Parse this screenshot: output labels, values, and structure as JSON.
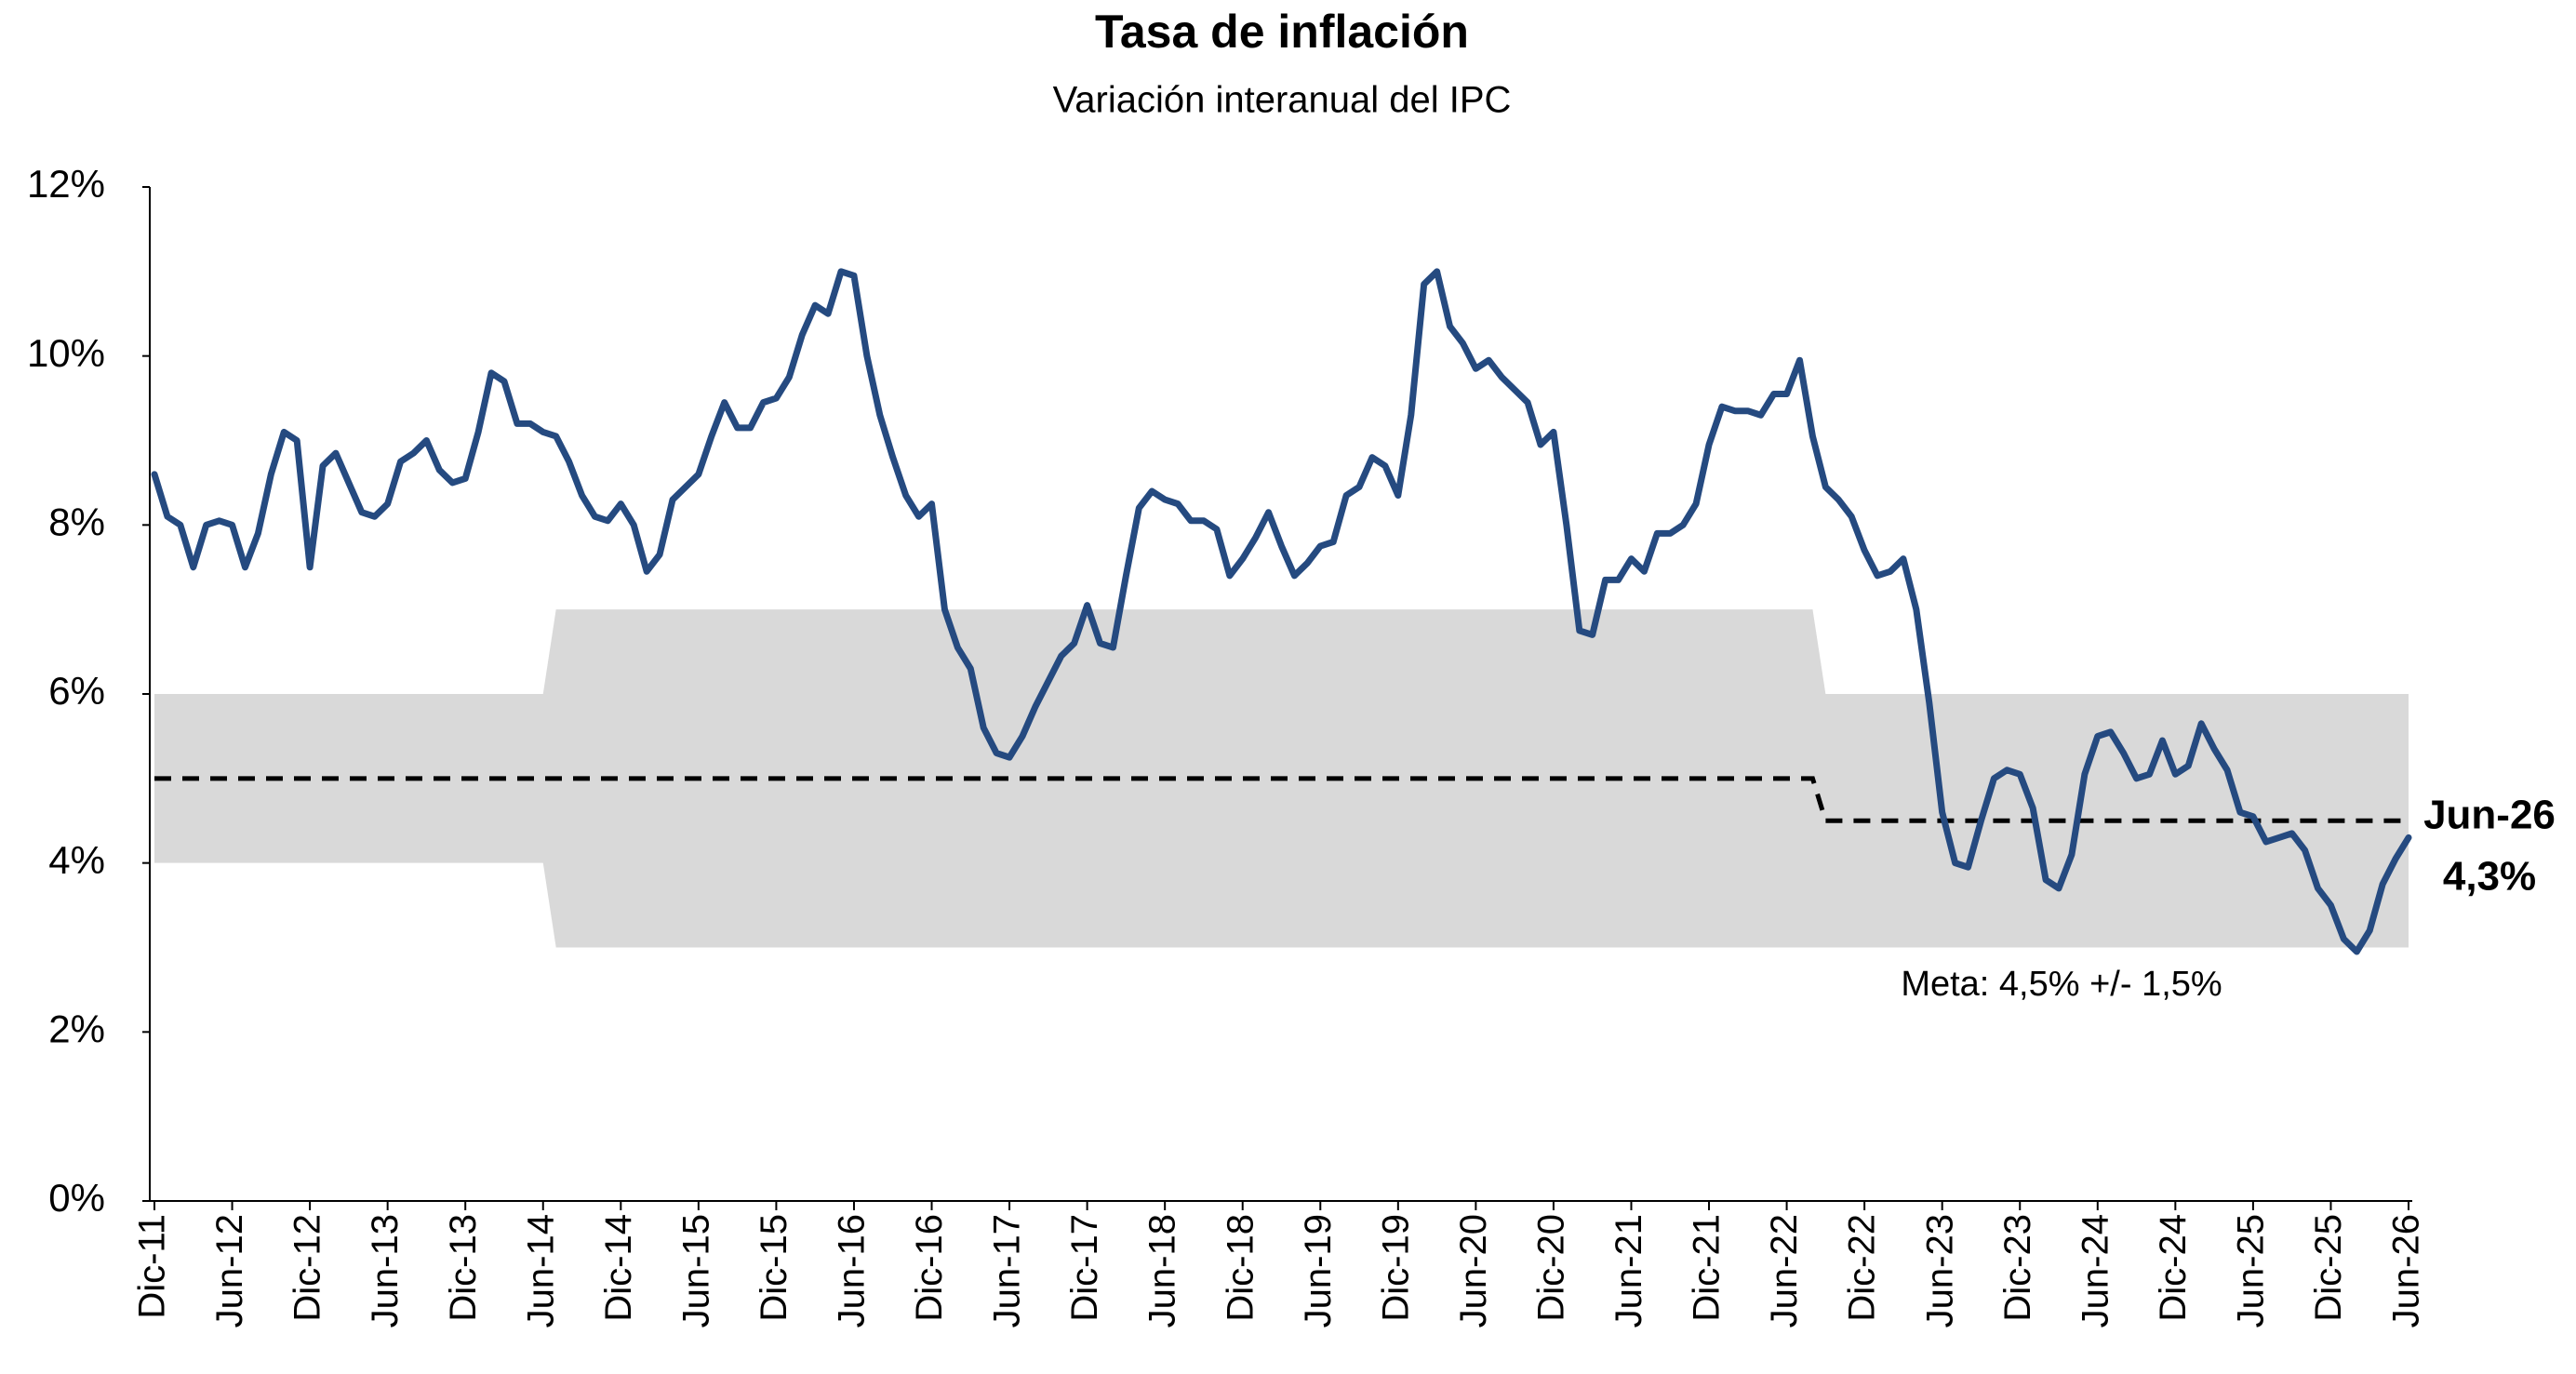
{
  "chart_data": {
    "type": "line",
    "title": "Tasa de inflación",
    "subtitle": "Variación interanual del IPC",
    "categories": [
      "Dic-11",
      null,
      null,
      null,
      null,
      null,
      "Jun-12",
      null,
      null,
      null,
      null,
      null,
      "Dic-12",
      null,
      null,
      null,
      null,
      null,
      "Jun-13",
      null,
      null,
      null,
      null,
      null,
      "Dic-13",
      null,
      null,
      null,
      null,
      null,
      "Jun-14",
      null,
      null,
      null,
      null,
      null,
      "Dic-14",
      null,
      null,
      null,
      null,
      null,
      "Jun-15",
      null,
      null,
      null,
      null,
      null,
      "Dic-15",
      null,
      null,
      null,
      null,
      null,
      "Jun-16",
      null,
      null,
      null,
      null,
      null,
      "Dic-16",
      null,
      null,
      null,
      null,
      null,
      "Jun-17",
      null,
      null,
      null,
      null,
      null,
      "Dic-17",
      null,
      null,
      null,
      null,
      null,
      "Jun-18",
      null,
      null,
      null,
      null,
      null,
      "Dic-18",
      null,
      null,
      null,
      null,
      null,
      "Jun-19",
      null,
      null,
      null,
      null,
      null,
      "Dic-19",
      null,
      null,
      null,
      null,
      null,
      "Jun-20",
      null,
      null,
      null,
      null,
      null,
      "Dic-20",
      null,
      null,
      null,
      null,
      null,
      "Jun-21",
      null,
      null,
      null,
      null,
      null,
      "Dic-21",
      null,
      null,
      null,
      null,
      null,
      "Jun-22",
      null,
      null,
      null,
      null,
      null,
      "Dic-22",
      null,
      null,
      null,
      null,
      null,
      "Jun-23",
      null,
      null,
      null,
      null,
      null,
      "Dic-23",
      null,
      null,
      null,
      null,
      null,
      "Jun-24",
      null,
      null,
      null,
      null,
      null,
      "Dic-24",
      null,
      null,
      null,
      null,
      null,
      "Jun-25",
      null,
      null,
      null,
      null,
      null,
      "Dic-25",
      null,
      null,
      null,
      null,
      null,
      "Jun-26"
    ],
    "series": [
      {
        "color": "#254a80",
        "values": [
          8.6,
          8.1,
          8.0,
          7.5,
          8.0,
          8.05,
          8.0,
          7.5,
          7.9,
          8.6,
          9.1,
          9.0,
          7.5,
          8.7,
          8.85,
          8.5,
          8.15,
          8.1,
          8.25,
          8.75,
          8.85,
          9.0,
          8.65,
          8.5,
          8.55,
          9.1,
          9.8,
          9.7,
          9.2,
          9.2,
          9.1,
          9.05,
          8.75,
          8.35,
          8.1,
          8.05,
          8.25,
          8.0,
          7.45,
          7.65,
          8.3,
          8.45,
          8.6,
          9.05,
          9.45,
          9.15,
          9.15,
          9.45,
          9.5,
          9.75,
          10.25,
          10.6,
          10.5,
          11.0,
          10.95,
          10.0,
          9.3,
          8.8,
          8.35,
          8.1,
          8.25,
          7.0,
          6.55,
          6.3,
          5.6,
          5.3,
          5.25,
          5.5,
          5.85,
          6.15,
          6.45,
          6.6,
          7.05,
          6.6,
          6.55,
          7.4,
          8.2,
          8.4,
          8.3,
          8.25,
          8.05,
          8.05,
          7.95,
          7.4,
          7.6,
          7.85,
          8.15,
          7.75,
          7.4,
          7.55,
          7.75,
          7.8,
          8.35,
          8.45,
          8.8,
          8.7,
          8.35,
          9.3,
          10.85,
          11.0,
          10.35,
          10.15,
          9.85,
          9.95,
          9.75,
          9.6,
          9.45,
          8.95,
          9.1,
          8.0,
          6.75,
          6.7,
          7.35,
          7.35,
          7.6,
          7.45,
          7.9,
          7.9,
          8.0,
          8.25,
          8.95,
          9.4,
          9.35,
          9.35,
          9.3,
          9.55,
          9.55,
          9.95,
          9.05,
          8.45,
          8.3,
          8.1,
          7.7,
          7.4,
          7.45,
          7.6,
          7.0,
          5.9,
          4.6,
          4.0,
          3.95,
          4.5,
          5.0,
          5.1,
          5.05,
          4.65,
          3.8,
          3.7,
          4.1,
          5.05,
          5.5,
          5.55,
          5.3,
          5.0,
          5.05,
          5.45,
          5.05,
          5.15,
          5.65,
          5.35,
          5.1,
          4.6,
          4.55,
          4.25,
          4.3,
          4.35,
          4.15,
          3.7,
          3.5,
          3.1,
          2.95,
          3.2,
          3.75,
          4.05,
          4.3
        ]
      }
    ],
    "target": [
      5,
      5,
      5,
      5,
      5,
      5,
      5,
      5,
      5,
      5,
      5,
      5,
      5,
      5,
      5,
      5,
      5,
      5,
      5,
      5,
      5,
      5,
      5,
      5,
      5,
      5,
      5,
      5,
      5,
      5,
      5,
      5,
      5,
      5,
      5,
      5,
      5,
      5,
      5,
      5,
      5,
      5,
      5,
      5,
      5,
      5,
      5,
      5,
      5,
      5,
      5,
      5,
      5,
      5,
      5,
      5,
      5,
      5,
      5,
      5,
      5,
      5,
      5,
      5,
      5,
      5,
      5,
      5,
      5,
      5,
      5,
      5,
      5,
      5,
      5,
      5,
      5,
      5,
      5,
      5,
      5,
      5,
      5,
      5,
      5,
      5,
      5,
      5,
      5,
      5,
      5,
      5,
      5,
      5,
      5,
      5,
      5,
      5,
      5,
      5,
      5,
      5,
      5,
      5,
      5,
      5,
      5,
      5,
      5,
      5,
      5,
      5,
      5,
      5,
      5,
      5,
      5,
      5,
      5,
      5,
      5,
      5,
      5,
      5,
      5,
      5,
      5,
      5,
      5,
      4.5,
      4.5,
      4.5,
      4.5,
      4.5,
      4.5,
      4.5,
      4.5,
      4.5,
      4.5,
      4.5,
      4.5,
      4.5,
      4.5,
      4.5,
      4.5,
      4.5,
      4.5,
      4.5,
      4.5,
      4.5,
      4.5,
      4.5,
      4.5,
      4.5,
      4.5,
      4.5,
      4.5,
      4.5,
      4.5,
      4.5,
      4.5,
      4.5,
      4.5,
      4.5,
      4.5,
      4.5,
      4.5,
      4.5,
      4.5,
      4.5,
      4.5,
      4.5,
      4.5,
      4.5,
      4.5
    ],
    "target_color": "#000000",
    "band_high": [
      6,
      6,
      6,
      6,
      6,
      6,
      6,
      6,
      6,
      6,
      6,
      6,
      6,
      6,
      6,
      6,
      6,
      6,
      6,
      6,
      6,
      6,
      6,
      6,
      6,
      6,
      6,
      6,
      6,
      6,
      6,
      7,
      7,
      7,
      7,
      7,
      7,
      7,
      7,
      7,
      7,
      7,
      7,
      7,
      7,
      7,
      7,
      7,
      7,
      7,
      7,
      7,
      7,
      7,
      7,
      7,
      7,
      7,
      7,
      7,
      7,
      7,
      7,
      7,
      7,
      7,
      7,
      7,
      7,
      7,
      7,
      7,
      7,
      7,
      7,
      7,
      7,
      7,
      7,
      7,
      7,
      7,
      7,
      7,
      7,
      7,
      7,
      7,
      7,
      7,
      7,
      7,
      7,
      7,
      7,
      7,
      7,
      7,
      7,
      7,
      7,
      7,
      7,
      7,
      7,
      7,
      7,
      7,
      7,
      7,
      7,
      7,
      7,
      7,
      7,
      7,
      7,
      7,
      7,
      7,
      7,
      7,
      7,
      7,
      7,
      7,
      7,
      7,
      7,
      6,
      6,
      6,
      6,
      6,
      6,
      6,
      6,
      6,
      6,
      6,
      6,
      6,
      6,
      6,
      6,
      6,
      6,
      6,
      6,
      6,
      6,
      6,
      6,
      6,
      6,
      6,
      6,
      6,
      6,
      6,
      6,
      6,
      6,
      6,
      6,
      6,
      6,
      6,
      6,
      6,
      6,
      6,
      6,
      6,
      6
    ],
    "band_low": [
      4,
      4,
      4,
      4,
      4,
      4,
      4,
      4,
      4,
      4,
      4,
      4,
      4,
      4,
      4,
      4,
      4,
      4,
      4,
      4,
      4,
      4,
      4,
      4,
      4,
      4,
      4,
      4,
      4,
      4,
      4,
      3,
      3,
      3,
      3,
      3,
      3,
      3,
      3,
      3,
      3,
      3,
      3,
      3,
      3,
      3,
      3,
      3,
      3,
      3,
      3,
      3,
      3,
      3,
      3,
      3,
      3,
      3,
      3,
      3,
      3,
      3,
      3,
      3,
      3,
      3,
      3,
      3,
      3,
      3,
      3,
      3,
      3,
      3,
      3,
      3,
      3,
      3,
      3,
      3,
      3,
      3,
      3,
      3,
      3,
      3,
      3,
      3,
      3,
      3,
      3,
      3,
      3,
      3,
      3,
      3,
      3,
      3,
      3,
      3,
      3,
      3,
      3,
      3,
      3,
      3,
      3,
      3,
      3,
      3,
      3,
      3,
      3,
      3,
      3,
      3,
      3,
      3,
      3,
      3,
      3,
      3,
      3,
      3,
      3,
      3,
      3,
      3,
      3,
      3,
      3,
      3,
      3,
      3,
      3,
      3,
      3,
      3,
      3,
      3,
      3,
      3,
      3,
      3,
      3,
      3,
      3,
      3,
      3,
      3,
      3,
      3,
      3,
      3,
      3,
      3,
      3,
      3,
      3,
      3,
      3,
      3,
      3,
      3,
      3,
      3,
      3,
      3,
      3,
      3,
      3,
      3,
      3,
      3,
      3
    ],
    "band_color": "#d9d9d9",
    "ylim": [
      0,
      12
    ],
    "yticks": [
      {
        "value": 0,
        "label": "0%"
      },
      {
        "value": 2,
        "label": "2%"
      },
      {
        "value": 4,
        "label": "4%"
      },
      {
        "value": 6,
        "label": "6%"
      },
      {
        "value": 8,
        "label": "8%"
      },
      {
        "value": 10,
        "label": "10%"
      },
      {
        "value": 12,
        "label": "12%"
      }
    ],
    "grid": false,
    "annotations": {
      "band": "Meta: 4,5% +/- 1,5%",
      "last_date": "Jun-26",
      "last_value": "4,3%"
    }
  }
}
